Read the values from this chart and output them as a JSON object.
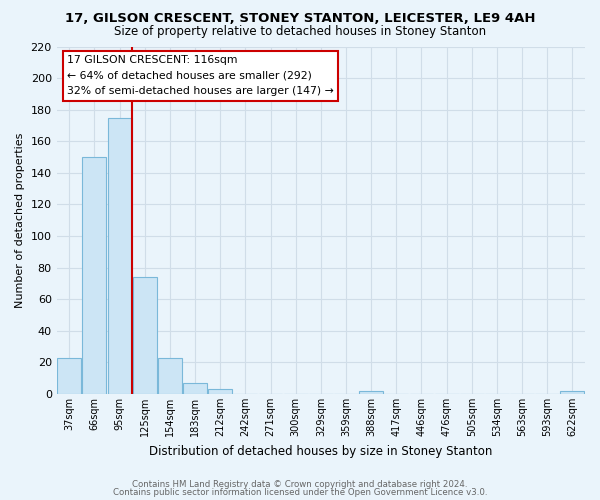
{
  "title": "17, GILSON CRESCENT, STONEY STANTON, LEICESTER, LE9 4AH",
  "subtitle": "Size of property relative to detached houses in Stoney Stanton",
  "xlabel": "Distribution of detached houses by size in Stoney Stanton",
  "ylabel": "Number of detached properties",
  "bin_labels": [
    "37sqm",
    "66sqm",
    "95sqm",
    "125sqm",
    "154sqm",
    "183sqm",
    "212sqm",
    "242sqm",
    "271sqm",
    "300sqm",
    "329sqm",
    "359sqm",
    "388sqm",
    "417sqm",
    "446sqm",
    "476sqm",
    "505sqm",
    "534sqm",
    "563sqm",
    "593sqm",
    "622sqm"
  ],
  "bar_values": [
    23,
    150,
    175,
    74,
    23,
    7,
    3,
    0,
    0,
    0,
    0,
    0,
    2,
    0,
    0,
    0,
    0,
    0,
    0,
    0,
    2
  ],
  "bar_color": "#cce5f5",
  "bar_edge_color": "#7ab8d9",
  "background_color": "#eaf4fb",
  "grid_color": "#d0dde8",
  "vline_color": "#cc0000",
  "vline_x": 2.5,
  "ylim": [
    0,
    220
  ],
  "yticks": [
    0,
    20,
    40,
    60,
    80,
    100,
    120,
    140,
    160,
    180,
    200,
    220
  ],
  "annotation_line1": "17 GILSON CRESCENT: 116sqm",
  "annotation_line2": "← 64% of detached houses are smaller (292)",
  "annotation_line3": "32% of semi-detached houses are larger (147) →",
  "footer_line1": "Contains HM Land Registry data © Crown copyright and database right 2024.",
  "footer_line2": "Contains public sector information licensed under the Open Government Licence v3.0."
}
